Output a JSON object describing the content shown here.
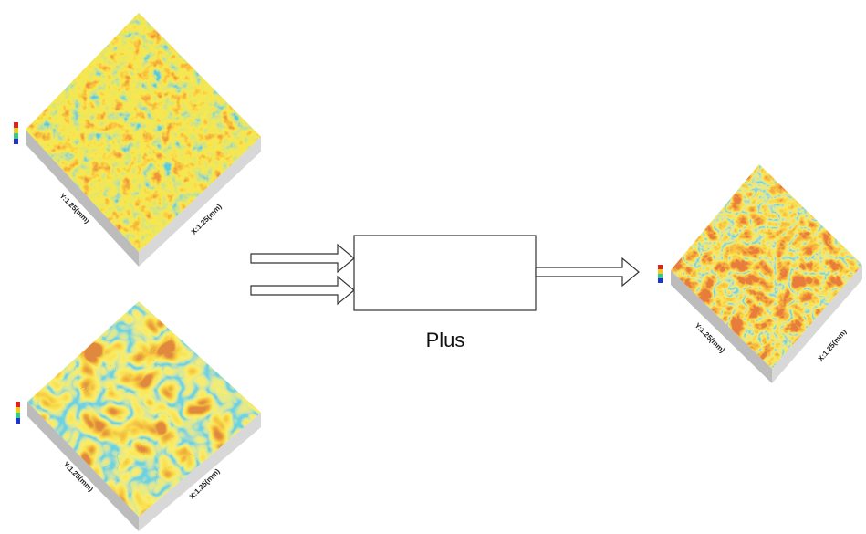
{
  "inputs": [
    {
      "x_label": "X:1.25(mm)",
      "y_label": "Y:1.25(mm)"
    },
    {
      "x_label": "X:1.25(mm)",
      "y_label": "Y:1.25(mm)"
    }
  ],
  "operation": {
    "label": "Plus"
  },
  "output": {
    "x_label": "X:1.25(mm)",
    "y_label": "Y:1.25(mm)"
  }
}
